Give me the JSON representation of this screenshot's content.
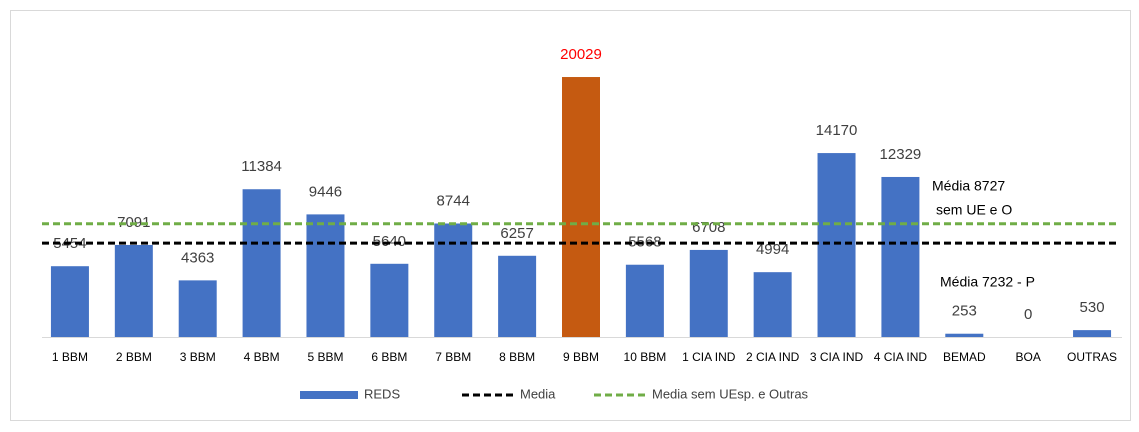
{
  "chart_data": {
    "type": "bar",
    "categories": [
      "1 BBM",
      "2 BBM",
      "3 BBM",
      "4 BBM",
      "5 BBM",
      "6 BBM",
      "7 BBM",
      "8 BBM",
      "9 BBM",
      "10 BBM",
      "1 CIA IND",
      "2 CIA IND",
      "3 CIA IND",
      "4 CIA IND",
      "BEMAD",
      "BOA",
      "OUTRAS"
    ],
    "series": [
      {
        "name": "REDS",
        "color": "#4472c4",
        "values": [
          5454,
          7091,
          4363,
          11384,
          9446,
          5640,
          8744,
          6257,
          20029,
          5568,
          6708,
          4994,
          14170,
          12329,
          253,
          0,
          530
        ],
        "colors": [
          "#4472c4",
          "#4472c4",
          "#4472c4",
          "#4472c4",
          "#4472c4",
          "#4472c4",
          "#4472c4",
          "#4472c4",
          "#c55a11",
          "#4472c4",
          "#4472c4",
          "#4472c4",
          "#4472c4",
          "#4472c4",
          "#4472c4",
          "#4472c4",
          "#4472c4"
        ],
        "label_colors": [
          "#404040",
          "#404040",
          "#404040",
          "#404040",
          "#404040",
          "#404040",
          "#404040",
          "#404040",
          "#ff0000",
          "#404040",
          "#404040",
          "#404040",
          "#404040",
          "#404040",
          "#404040",
          "#404040",
          "#404040"
        ]
      }
    ],
    "lines": [
      {
        "name": "Media",
        "value": 7232,
        "color": "#000000"
      },
      {
        "name": "Media sem UEsp. e Outras",
        "value": 8727,
        "color": "#70ad47"
      }
    ],
    "annotations": [
      "Média  8727",
      "sem UE e O",
      "Média 7232 - P"
    ],
    "ylim": [
      0,
      20000
    ],
    "grid": false,
    "legend": "bottom"
  }
}
